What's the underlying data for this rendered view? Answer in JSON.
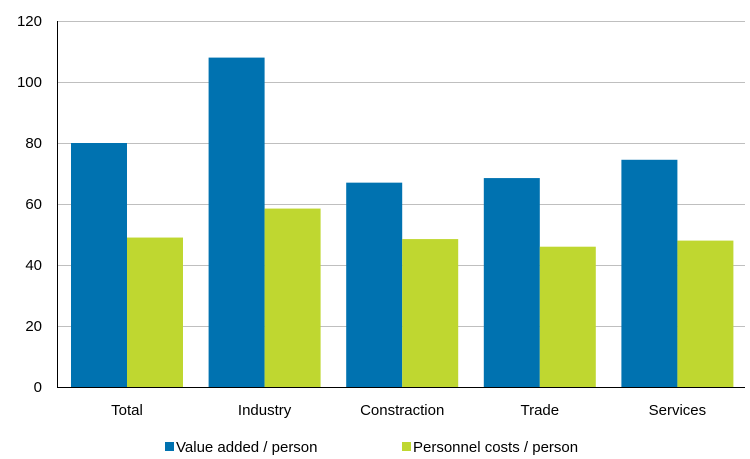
{
  "chart_data": {
    "type": "bar",
    "title": "",
    "xlabel": "",
    "ylabel": "",
    "categories": [
      "Total",
      "Industry",
      "Constraction",
      "Trade",
      "Services"
    ],
    "series": [
      {
        "name": "Value added / person",
        "color": "#0072b0",
        "values": [
          80,
          108,
          67,
          68.5,
          74.5
        ]
      },
      {
        "name": "Personnel costs / person",
        "color": "#bfd730",
        "values": [
          49,
          58.5,
          48.5,
          46,
          48
        ]
      }
    ],
    "ylim": [
      0,
      120
    ],
    "yticks": [
      0,
      20,
      40,
      60,
      80,
      100,
      120
    ],
    "grid": true,
    "legend_position": "bottom"
  }
}
